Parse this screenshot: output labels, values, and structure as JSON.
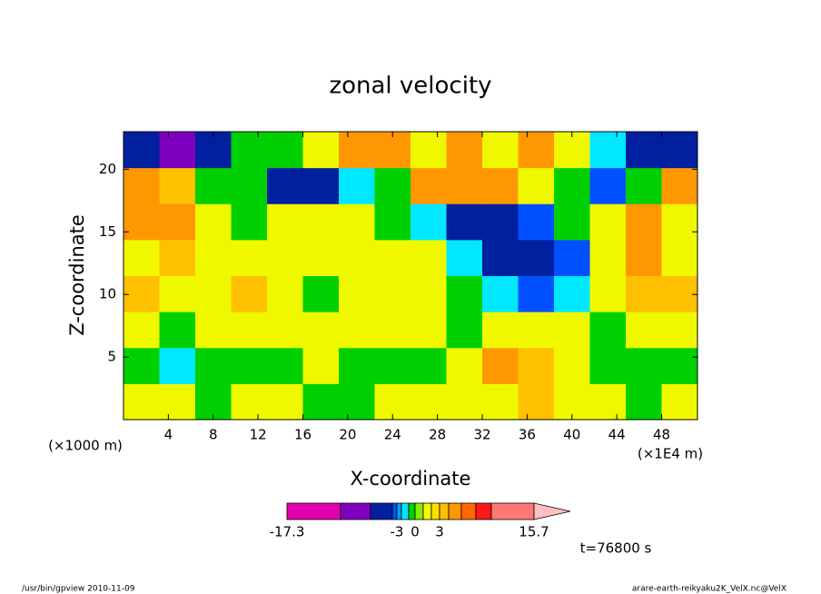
{
  "chart_data": {
    "type": "contour",
    "title": "zonal velocity",
    "x_label": "X-coordinate",
    "y_label": "Z-coordinate",
    "x_unit": "(×1E4 m)",
    "y_unit": "(×1000 m)",
    "xlim": [
      0,
      51.2
    ],
    "ylim": [
      0,
      23
    ],
    "xticks": [
      4,
      8,
      12,
      16,
      20,
      24,
      28,
      32,
      36,
      40,
      44,
      48
    ],
    "yticks": [
      5,
      10,
      15,
      20
    ],
    "z": [
      [
        1.5,
        1.5,
        -0.5,
        1.5,
        1.5,
        -0.5,
        -0.5,
        1.5,
        1.5,
        1.5,
        1.5,
        3.5,
        1.5,
        1.5,
        -0.5,
        1.5
      ],
      [
        -0.5,
        -1.5,
        -0.5,
        -0.5,
        -0.5,
        1.5,
        -0.5,
        -0.5,
        -0.5,
        1.5,
        4.5,
        3.5,
        1.5,
        -0.5,
        -0.5,
        -0.5
      ],
      [
        1.5,
        -0.5,
        1.5,
        1.5,
        1.5,
        1.5,
        1.5,
        1.5,
        1.5,
        -0.5,
        1.5,
        1.5,
        1.5,
        -0.5,
        1.5,
        1.5
      ],
      [
        3.5,
        1.5,
        1.5,
        3.5,
        1.5,
        -0.5,
        1.5,
        1.5,
        1.5,
        -0.5,
        -1.5,
        -3.5,
        -1.5,
        1.5,
        3.5,
        3.5
      ],
      [
        1.5,
        3.5,
        1.5,
        1.5,
        1.5,
        1.5,
        1.5,
        1.5,
        1.5,
        -1.5,
        -5,
        -6,
        -3.5,
        1.5,
        4.5,
        1.5
      ],
      [
        4.5,
        4.5,
        1.5,
        -0.5,
        1.5,
        1.5,
        1.5,
        -0.5,
        -1.5,
        -5,
        -5,
        -3.5,
        -0.5,
        1.5,
        4.5,
        1.5
      ],
      [
        4.5,
        3.5,
        -0.5,
        -0.5,
        -5,
        -5,
        -1.5,
        -0.5,
        4.5,
        4.5,
        4.5,
        1.5,
        -0.5,
        -3.5,
        -0.5,
        4.5
      ],
      [
        -5,
        -9,
        -5,
        -0.5,
        -0.5,
        1.5,
        4.5,
        4.5,
        1.5,
        4.5,
        1.5,
        4.5,
        1.5,
        -1.5,
        -5,
        -5
      ]
    ],
    "levels": [
      -17.3,
      -12,
      -7,
      -4,
      -3,
      -2,
      -1,
      0,
      1,
      2,
      3,
      4,
      5,
      7,
      10,
      15.7
    ],
    "level_labels": [
      "-17.3",
      null,
      null,
      null,
      "-3",
      null,
      null,
      "0",
      null,
      null,
      "3",
      null,
      null,
      null,
      null,
      "15.7"
    ],
    "colors": [
      "#e000b0",
      "#8000c0",
      "#0020a0",
      "#0050ff",
      "#00a0ff",
      "#00e8ff",
      "#00d000",
      "#80f000",
      "#f0f800",
      "#ffe000",
      "#ffc000",
      "#ff9800",
      "#ff6800",
      "#ff1818",
      "#ff7878"
    ],
    "time_label": "t=76800 s",
    "footer_left": "/usr/bin/gpview  2010-11-09",
    "footer_right": "arare-earth-reikyaku2K_VelX.nc@VelX"
  }
}
